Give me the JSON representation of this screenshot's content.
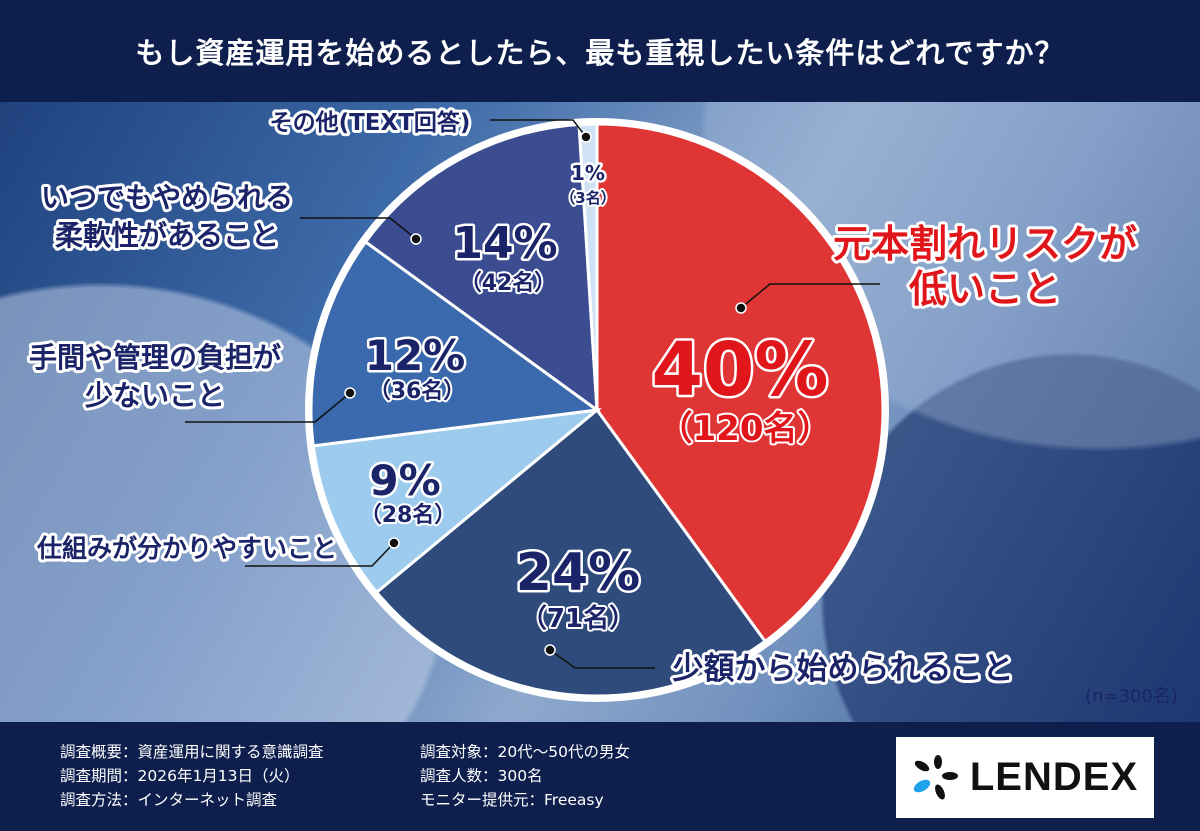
{
  "title": "もし資産運用を始めるとしたら、最も重視したい条件はどれですか？",
  "sample_note": "(n=300名)",
  "chart_data": {
    "type": "pie",
    "title": "もし資産運用を始めるとしたら、最も重視したい条件はどれですか？",
    "slices": [
      {
        "label_lines": [
          "元本割れリスクが",
          "低いこと"
        ],
        "percent": 40,
        "count": "（120名）",
        "percent_label": "40%",
        "color": "#e03535"
      },
      {
        "label_lines": [
          "少額から始められること"
        ],
        "percent": 24,
        "count": "（71名）",
        "percent_label": "24%",
        "color": "#2f4b7b"
      },
      {
        "label_lines": [
          "仕組みが分かりやすいこと"
        ],
        "percent": 9,
        "count": "（28名）",
        "percent_label": "9%",
        "color": "#9ccbee"
      },
      {
        "label_lines": [
          "手間や管理の負担が",
          "少ないこと"
        ],
        "percent": 12,
        "count": "（36名）",
        "percent_label": "12%",
        "color": "#3a6aad"
      },
      {
        "label_lines": [
          "いつでもやめられる",
          "柔軟性があること"
        ],
        "percent": 14,
        "count": "（42名）",
        "percent_label": "14%",
        "color": "#3b4c90"
      },
      {
        "label_lines": [
          "その他(TEXT回答)"
        ],
        "percent": 1,
        "count": "（3名）",
        "percent_label": "1%",
        "color": "#cfe2f3"
      }
    ],
    "n": 300
  },
  "footer": {
    "left": [
      "調査概要：資産運用に関する意識調査",
      "調査期間：2026年1月13日（火）",
      "調査方法：インターネット調査"
    ],
    "right": [
      "調査対象：20代〜50代の男女",
      "調査人数：300名",
      "モニター提供元：Freeasy"
    ],
    "logo_text": "LENDEX"
  }
}
